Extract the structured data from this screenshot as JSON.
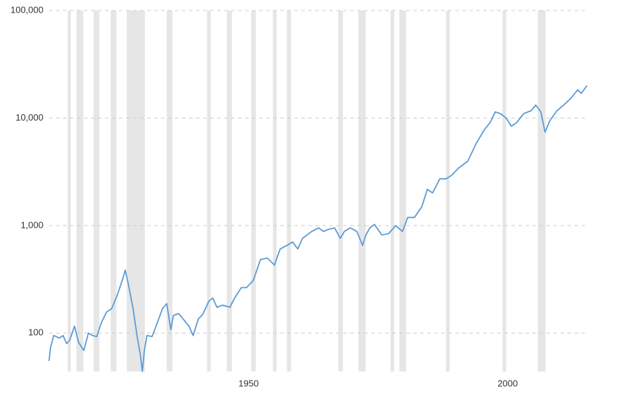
{
  "chart_data": {
    "type": "line",
    "log_scale": true,
    "grid": true,
    "color": "#5b9bd5",
    "band_color": "#e6e6e6",
    "xlim": [
      1911.5,
      2015.3
    ],
    "xticks": [
      1950,
      2000
    ],
    "ylim": [
      44,
      100000
    ],
    "yticks": [
      100,
      {
        "value": 1000,
        "label": "1,000"
      },
      {
        "value": 10000,
        "label": "10,000"
      },
      {
        "value": 100000,
        "label": "100,000"
      }
    ],
    "shaded_periods": [
      [
        1915.1,
        1915.7
      ],
      [
        1916.8,
        1918.1
      ],
      [
        1920.1,
        1921.2
      ],
      [
        1923.4,
        1924.5
      ],
      [
        1926.5,
        1930.0
      ],
      [
        1934.2,
        1935.3
      ],
      [
        1942.0,
        1942.7
      ],
      [
        1945.8,
        1946.8
      ],
      [
        1950.5,
        1951.4
      ],
      [
        1954.7,
        1955.4
      ],
      [
        1957.4,
        1958.2
      ],
      [
        1967.3,
        1968.2
      ],
      [
        1971.2,
        1972.6
      ],
      [
        1977.4,
        1978.1
      ],
      [
        1979.1,
        1980.4
      ],
      [
        1988.1,
        1988.8
      ],
      [
        1999.0,
        1999.7
      ],
      [
        2005.8,
        2007.3
      ]
    ],
    "x": [
      1911.5,
      1911.8,
      1912.4,
      1913.5,
      1914.2,
      1914.9,
      1915.5,
      1916.4,
      1917.2,
      1918.2,
      1919.1,
      1919.9,
      1920.7,
      1921.6,
      1922.6,
      1923.6,
      1924.7,
      1925.7,
      1926.2,
      1926.8,
      1927.7,
      1928.5,
      1929.1,
      1929.5,
      1929.9,
      1930.4,
      1931.4,
      1932.4,
      1933.4,
      1934.2,
      1935.0,
      1935.5,
      1936.5,
      1937.4,
      1938.5,
      1939.3,
      1940.3,
      1941.2,
      1942.3,
      1943.1,
      1943.9,
      1945.0,
      1946.4,
      1947.3,
      1948.6,
      1949.6,
      1950.9,
      1952.3,
      1953.6,
      1955.0,
      1956.1,
      1957.4,
      1958.5,
      1959.5,
      1960.4,
      1962.2,
      1963.5,
      1964.5,
      1965.5,
      1966.6,
      1967.7,
      1968.5,
      1969.6,
      1970.9,
      1972.0,
      1972.6,
      1973.4,
      1974.3,
      1975.7,
      1977.0,
      1978.4,
      1979.7,
      1980.7,
      1982.0,
      1983.4,
      1984.5,
      1985.5,
      1986.9,
      1988.1,
      1989.2,
      1990.5,
      1992.3,
      1993.9,
      1995.5,
      1996.6,
      1997.6,
      1998.6,
      1999.7,
      2000.7,
      2001.7,
      2003.1,
      2004.5,
      2005.4,
      2006.4,
      2007.2,
      2008.1,
      2009.5,
      2010.8,
      2012.2,
      2013.5,
      2014.2,
      2015.3
    ],
    "values": [
      55,
      74,
      95,
      90,
      95,
      80,
      86,
      116,
      82,
      69,
      100,
      95,
      93,
      125,
      157,
      169,
      228,
      318,
      386,
      286,
      170,
      93,
      64,
      44,
      69,
      95,
      93,
      125,
      169,
      188,
      108,
      146,
      152,
      135,
      116,
      95,
      135,
      150,
      197,
      212,
      174,
      182,
      174,
      212,
      265,
      265,
      308,
      483,
      500,
      430,
      606,
      654,
      705,
      606,
      760,
      883,
      952,
      883,
      925,
      952,
      760,
      883,
      952,
      883,
      654,
      810,
      952,
      1025,
      820,
      840,
      1000,
      883,
      1190,
      1190,
      1490,
      2170,
      2010,
      2720,
      2720,
      2940,
      3420,
      3970,
      5780,
      7800,
      9050,
      11400,
      11000,
      10000,
      8390,
      9050,
      11000,
      11700,
      13200,
      11400,
      7400,
      9400,
      11700,
      13200,
      15300,
      18300,
      17000,
      20000
    ]
  }
}
